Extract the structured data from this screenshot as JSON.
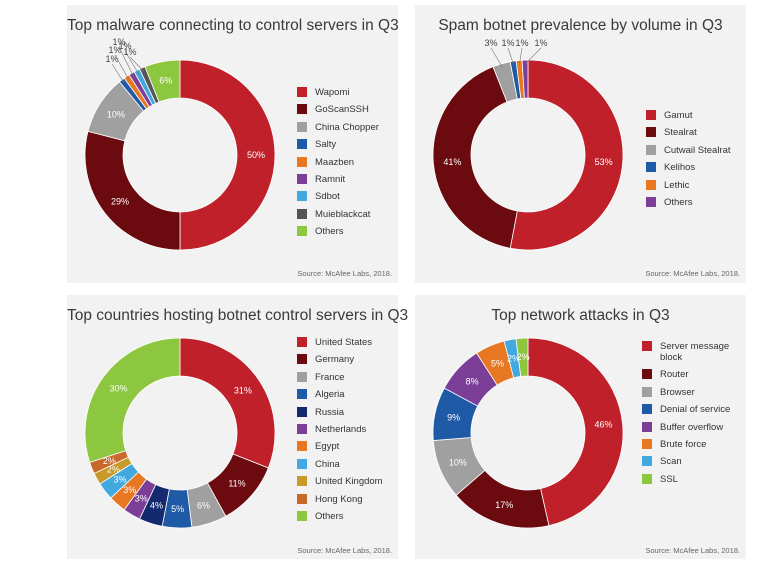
{
  "source_text": "Source: McAfee Labs, 2018.",
  "chart_data": [
    {
      "type": "pie",
      "donut": true,
      "title": "Top malware connecting to control servers in Q3",
      "legend_position": "right",
      "slices": [
        {
          "name": "Wapomi",
          "value": 50,
          "label": "50%",
          "color": "#c0202a"
        },
        {
          "name": "GoScanSSH",
          "value": 29,
          "label": "29%",
          "color": "#6b0a0f"
        },
        {
          "name": "China Chopper",
          "value": 10,
          "label": "10%",
          "color": "#a0a0a0"
        },
        {
          "name": "Salty",
          "value": 1,
          "label": "1%",
          "color": "#1f5aa6"
        },
        {
          "name": "Maazben",
          "value": 1,
          "label": "1%",
          "color": "#e87722"
        },
        {
          "name": "Ramnit",
          "value": 1,
          "label": "1%",
          "color": "#7b3f98"
        },
        {
          "name": "Sdbot",
          "value": 1,
          "label": "1%",
          "color": "#41a8e0"
        },
        {
          "name": "Muieblackcat",
          "value": 1,
          "label": "1%",
          "color": "#555555"
        },
        {
          "name": "Others",
          "value": 6,
          "label": "6%",
          "color": "#8dc63f"
        }
      ]
    },
    {
      "type": "pie",
      "donut": true,
      "title": "Spam botnet prevalence by volume in Q3",
      "legend_position": "right",
      "slices": [
        {
          "name": "Gamut",
          "value": 53,
          "label": "53%",
          "color": "#c0202a"
        },
        {
          "name": "Stealrat",
          "value": 41,
          "label": "41%",
          "color": "#6b0a0f"
        },
        {
          "name": "Cutwail   Stealrat",
          "value": 3,
          "label": "3%",
          "color": "#a0a0a0"
        },
        {
          "name": "Kelihos",
          "value": 1,
          "label": "1%",
          "color": "#1f5aa6"
        },
        {
          "name": "Lethic",
          "value": 1,
          "label": "1%",
          "color": "#e87722"
        },
        {
          "name": "Others",
          "value": 1,
          "label": "1%",
          "color": "#7b3f98"
        }
      ]
    },
    {
      "type": "pie",
      "donut": true,
      "title": "Top countries hosting botnet control servers in Q3",
      "legend_position": "right",
      "slices": [
        {
          "name": "United States",
          "value": 31,
          "label": "31%",
          "color": "#c0202a"
        },
        {
          "name": "Germany",
          "value": 11,
          "label": "11%",
          "color": "#6b0a0f"
        },
        {
          "name": "France",
          "value": 6,
          "label": "6%",
          "color": "#a0a0a0"
        },
        {
          "name": "Algeria",
          "value": 5,
          "label": "5%",
          "color": "#1f5aa6"
        },
        {
          "name": "Russia",
          "value": 4,
          "label": "4%",
          "color": "#142a6e"
        },
        {
          "name": "Netherlands",
          "value": 3,
          "label": "3%",
          "color": "#7b3f98"
        },
        {
          "name": "Egypt",
          "value": 3,
          "label": "3%",
          "color": "#e87722"
        },
        {
          "name": "China",
          "value": 3,
          "label": "3%",
          "color": "#41a8e0"
        },
        {
          "name": "United Kingdom",
          "value": 2,
          "label": "2%",
          "color": "#c79a2a"
        },
        {
          "name": "Hong Kong",
          "value": 2,
          "label": "2%",
          "color": "#c8692a"
        },
        {
          "name": "Others",
          "value": 30,
          "label": "30%",
          "color": "#8dc63f"
        }
      ]
    },
    {
      "type": "pie",
      "donut": true,
      "title": "Top network attacks in Q3",
      "legend_position": "right",
      "slices": [
        {
          "name": "Server message block",
          "value": 46,
          "label": "46%",
          "color": "#c0202a"
        },
        {
          "name": "Router",
          "value": 17,
          "label": "17%",
          "color": "#6b0a0f"
        },
        {
          "name": "Browser",
          "value": 10,
          "label": "10%",
          "color": "#a0a0a0"
        },
        {
          "name": "Denial of service",
          "value": 9,
          "label": "9%",
          "color": "#1f5aa6"
        },
        {
          "name": "Buffer overflow",
          "value": 8,
          "label": "8%",
          "color": "#7b3f98"
        },
        {
          "name": "Brute force",
          "value": 5,
          "label": "5%",
          "color": "#e87722"
        },
        {
          "name": "Scan",
          "value": 2,
          "label": "2%",
          "color": "#41a8e0"
        },
        {
          "name": "SSL",
          "value": 2,
          "label": "2%",
          "color": "#8dc63f"
        }
      ]
    }
  ]
}
